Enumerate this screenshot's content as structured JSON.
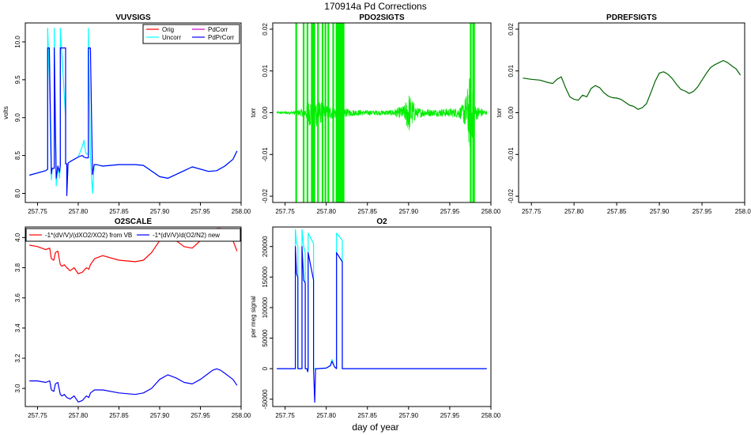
{
  "figure": {
    "title": "170914a   Pd Corrections",
    "xlabel": "day of year"
  },
  "chart_data": [
    {
      "id": "vuvsigs",
      "type": "line",
      "title": "VUVSIGS",
      "ylabel": "volts",
      "xlim": [
        257.735,
        258.0
      ],
      "ylim": [
        7.88,
        10.25
      ],
      "x_ticks": [
        "257.75",
        "257.80",
        "257.85",
        "257.90",
        "257.95",
        "258.00"
      ],
      "y_ticks": [
        "8.0",
        "8.5",
        "9.0",
        "9.5",
        "10.0"
      ],
      "legend": {
        "position": "top-right",
        "columns": 2,
        "entries": [
          "Orig",
          "Uncorr",
          "PdCorr",
          "PdPrCorr"
        ]
      },
      "series": [
        {
          "name": "Uncorr",
          "color": "#00ffff",
          "x": [
            257.74,
            257.76,
            257.7625,
            257.7625,
            257.7645,
            257.767,
            257.768,
            257.7705,
            257.7705,
            257.773,
            257.775,
            257.777,
            257.778,
            257.778,
            257.7845,
            257.7845,
            257.786,
            257.786,
            257.7875,
            257.79,
            257.8,
            257.805,
            257.807,
            257.809,
            257.81,
            257.8125,
            257.8125,
            257.815,
            257.8175,
            257.8195,
            257.8195,
            257.822,
            257.83,
            257.85,
            257.87,
            257.88,
            257.9,
            257.91,
            257.93,
            257.94,
            257.96,
            257.97,
            257.98,
            257.99,
            257.995
          ],
          "y": [
            8.24,
            8.3,
            8.32,
            10.18,
            9.5,
            8.18,
            8.33,
            8.33,
            10.18,
            8.1,
            8.36,
            8.2,
            8.37,
            10.18,
            9.0,
            8.39,
            8.39,
            8.0,
            8.4,
            8.42,
            8.48,
            8.62,
            8.7,
            8.55,
            8.52,
            8.52,
            10.18,
            8.5,
            8.0,
            8.38,
            8.38,
            8.38,
            8.36,
            8.38,
            8.38,
            8.37,
            8.22,
            8.2,
            8.3,
            8.35,
            8.29,
            8.3,
            8.36,
            8.45,
            8.56
          ]
        },
        {
          "name": "PdPrCorr",
          "color": "#0000ff",
          "x": [
            257.74,
            257.76,
            257.7625,
            257.7625,
            257.7645,
            257.767,
            257.768,
            257.7705,
            257.7705,
            257.773,
            257.775,
            257.777,
            257.778,
            257.778,
            257.7845,
            257.7845,
            257.786,
            257.786,
            257.7875,
            257.79,
            257.8,
            257.805,
            257.807,
            257.809,
            257.81,
            257.8125,
            257.8125,
            257.815,
            257.8175,
            257.8195,
            257.8195,
            257.822,
            257.83,
            257.85,
            257.87,
            257.88,
            257.9,
            257.91,
            257.93,
            257.94,
            257.96,
            257.97,
            257.98,
            257.99,
            257.995
          ],
          "y": [
            8.24,
            8.3,
            8.32,
            9.92,
            9.92,
            8.26,
            8.33,
            8.33,
            9.92,
            8.2,
            8.36,
            8.28,
            8.37,
            9.92,
            9.92,
            8.39,
            8.39,
            7.97,
            8.4,
            8.42,
            8.48,
            8.5,
            8.48,
            8.47,
            8.47,
            8.47,
            9.92,
            9.92,
            8.25,
            8.38,
            8.38,
            8.38,
            8.36,
            8.38,
            8.38,
            8.37,
            8.22,
            8.2,
            8.3,
            8.35,
            8.29,
            8.3,
            8.36,
            8.45,
            8.56
          ]
        }
      ]
    },
    {
      "id": "pdo2sigts",
      "type": "line",
      "title": "PDO2SIGTS",
      "ylabel": "torr",
      "xlim": [
        257.735,
        258.0
      ],
      "ylim": [
        -0.0215,
        0.0215
      ],
      "x_ticks": [
        "257.75",
        "257.80",
        "257.85",
        "257.90",
        "257.95",
        "258.00"
      ],
      "y_ticks": [
        "-0.02",
        "-0.01",
        "0.00",
        "0.01",
        "0.02"
      ],
      "series": [
        {
          "name": "",
          "color": "#00ee00",
          "noise_envelope": {
            "x": [
              257.74,
              257.76,
              257.775,
              257.78,
              257.785,
              257.79,
              257.8,
              257.81,
              257.82,
              257.83,
              257.85,
              257.87,
              257.88,
              257.895,
              257.9,
              257.905,
              257.91,
              257.93,
              257.96,
              257.965,
              257.97,
              257.975,
              257.98,
              257.995
            ],
            "amp": [
              0.0003,
              0.0004,
              0.0012,
              0.0035,
              0.0045,
              0.003,
              0.0018,
              0.0015,
              0.0012,
              0.0008,
              0.0006,
              0.0006,
              0.0007,
              0.0018,
              0.005,
              0.003,
              0.0012,
              0.0008,
              0.0012,
              0.0018,
              0.0045,
              0.01,
              0.002,
              0.0004
            ]
          },
          "full_spikes_x": [
            257.7635,
            257.7725,
            257.7772,
            257.7825,
            257.7835,
            257.784,
            257.785,
            257.7855,
            257.79,
            257.7955,
            257.799,
            257.8025,
            257.8085,
            257.8125,
            257.814,
            257.8155,
            257.817,
            257.818,
            257.819,
            257.8205,
            257.821,
            257.9755,
            257.9785,
            257.9795
          ]
        }
      ]
    },
    {
      "id": "pdrefsigts",
      "type": "line",
      "title": "PDREFSIGTS",
      "ylabel": "torr",
      "xlim": [
        257.735,
        258.0
      ],
      "ylim": [
        -0.0215,
        0.0215
      ],
      "x_ticks": [
        "257.75",
        "257.80",
        "257.85",
        "257.90",
        "257.95",
        "258.00"
      ],
      "y_ticks": [
        "-0.02",
        "-0.01",
        "0.00",
        "0.01",
        "0.02"
      ],
      "series": [
        {
          "name": "",
          "color": "#006400",
          "x": [
            257.74,
            257.75,
            257.76,
            257.77,
            257.775,
            257.78,
            257.785,
            257.79,
            257.795,
            257.8,
            257.805,
            257.81,
            257.815,
            257.82,
            257.825,
            257.83,
            257.835,
            257.84,
            257.845,
            257.85,
            257.855,
            257.86,
            257.865,
            257.87,
            257.875,
            257.88,
            257.885,
            257.89,
            257.895,
            257.9,
            257.905,
            257.91,
            257.915,
            257.92,
            257.925,
            257.93,
            257.935,
            257.94,
            257.945,
            257.95,
            257.955,
            257.96,
            257.965,
            257.97,
            257.975,
            257.98,
            257.985,
            257.99,
            257.995
          ],
          "y": [
            0.0083,
            0.008,
            0.0078,
            0.0072,
            0.007,
            0.008,
            0.0086,
            0.006,
            0.0038,
            0.0032,
            0.003,
            0.0042,
            0.0038,
            0.0058,
            0.0065,
            0.006,
            0.0048,
            0.004,
            0.0036,
            0.0035,
            0.0032,
            0.0025,
            0.0018,
            0.0015,
            0.0008,
            0.0012,
            0.0022,
            0.0048,
            0.0075,
            0.0095,
            0.0098,
            0.0092,
            0.0082,
            0.0068,
            0.0056,
            0.0052,
            0.0046,
            0.0051,
            0.0062,
            0.0078,
            0.0094,
            0.0108,
            0.0115,
            0.012,
            0.0125,
            0.012,
            0.0112,
            0.0105,
            0.009
          ]
        }
      ]
    },
    {
      "id": "o2scale",
      "type": "line",
      "title": "O2SCALE",
      "ylabel": "",
      "xlim": [
        257.735,
        258.0
      ],
      "ylim": [
        2.88,
        4.07
      ],
      "x_ticks": [
        "257.75",
        "257.80",
        "257.85",
        "257.90",
        "257.95",
        "258.00"
      ],
      "y_ticks": [
        "3.0",
        "3.2",
        "3.4",
        "3.6",
        "3.8",
        "4.0"
      ],
      "legend": {
        "position": "top",
        "columns": 2,
        "entries": [
          "-1*(dV/V)/(dXO2/XO2) from VB",
          "-1*(dV/V)/d(O2/N2) new"
        ]
      },
      "series": [
        {
          "name": "-1*(dV/V)/(dXO2/XO2) from VB",
          "color": "#ff0000",
          "x": [
            257.74,
            257.75,
            257.76,
            257.765,
            257.767,
            257.77,
            257.772,
            257.775,
            257.778,
            257.78,
            257.783,
            257.786,
            257.79,
            257.795,
            257.8,
            257.805,
            257.81,
            257.813,
            257.815,
            257.82,
            257.83,
            257.85,
            257.87,
            257.88,
            257.89,
            257.9,
            257.91,
            257.92,
            257.93,
            257.94,
            257.95,
            257.96,
            257.965,
            257.97,
            257.975,
            257.98,
            257.99,
            257.995
          ],
          "y": [
            3.95,
            3.94,
            3.92,
            3.93,
            3.86,
            3.85,
            3.9,
            3.91,
            3.82,
            3.81,
            3.82,
            3.8,
            3.78,
            3.8,
            3.76,
            3.77,
            3.8,
            3.79,
            3.82,
            3.86,
            3.88,
            3.85,
            3.84,
            3.85,
            3.9,
            3.98,
            4.0,
            3.98,
            3.94,
            3.93,
            3.98,
            4.02,
            4.05,
            4.06,
            4.06,
            4.04,
            3.98,
            3.91
          ]
        },
        {
          "name": "-1*(dV/V)/d(O2/N2) new",
          "color": "#0000ff",
          "x": [
            257.74,
            257.75,
            257.76,
            257.765,
            257.767,
            257.77,
            257.772,
            257.775,
            257.778,
            257.78,
            257.783,
            257.786,
            257.79,
            257.795,
            257.8,
            257.805,
            257.81,
            257.813,
            257.815,
            257.82,
            257.83,
            257.85,
            257.87,
            257.88,
            257.89,
            257.9,
            257.91,
            257.92,
            257.93,
            257.94,
            257.95,
            257.96,
            257.965,
            257.97,
            257.975,
            257.98,
            257.99,
            257.995
          ],
          "y": [
            3.05,
            3.05,
            3.04,
            3.05,
            2.99,
            2.98,
            3.03,
            3.04,
            2.96,
            2.95,
            2.96,
            2.94,
            2.93,
            2.95,
            2.91,
            2.92,
            2.95,
            2.94,
            2.97,
            2.99,
            2.99,
            2.97,
            2.96,
            2.97,
            3.0,
            3.06,
            3.09,
            3.07,
            3.04,
            3.03,
            3.06,
            3.1,
            3.12,
            3.13,
            3.12,
            3.1,
            3.06,
            3.02
          ]
        }
      ]
    },
    {
      "id": "o2",
      "type": "line",
      "title": "O2",
      "ylabel": "per meg signal",
      "xlim": [
        257.735,
        258.0
      ],
      "ylim": [
        -62000,
        232000
      ],
      "x_ticks": [
        "257.75",
        "257.80",
        "257.85",
        "257.90",
        "257.95",
        "258.00"
      ],
      "y_ticks": [
        "-50000",
        "0",
        "50000",
        "100000",
        "150000",
        "200000"
      ],
      "series": [
        {
          "name": "",
          "color": "#00ffff",
          "x": [
            257.74,
            257.76,
            257.7625,
            257.7625,
            257.764,
            257.7655,
            257.7655,
            257.768,
            257.7705,
            257.7705,
            257.7725,
            257.7745,
            257.7745,
            257.7765,
            257.7775,
            257.778,
            257.778,
            257.7845,
            257.7845,
            257.786,
            257.787,
            257.79,
            257.8,
            257.805,
            257.807,
            257.81,
            257.8125,
            257.8125,
            257.8195,
            257.8195,
            257.83,
            257.85,
            257.9,
            257.95,
            257.995
          ],
          "y": [
            0,
            0,
            0,
            228000,
            205000,
            200000,
            0,
            0,
            0,
            228000,
            200000,
            190000,
            0,
            0,
            -5000,
            0,
            222000,
            205000,
            0,
            0,
            0,
            0,
            1000,
            5000,
            15000,
            3000,
            0,
            222000,
            210000,
            0,
            0,
            0,
            0,
            0,
            0
          ]
        },
        {
          "name": "",
          "color": "#0000ff",
          "x": [
            257.74,
            257.76,
            257.7625,
            257.7625,
            257.764,
            257.7655,
            257.7655,
            257.768,
            257.7705,
            257.7705,
            257.7725,
            257.7745,
            257.7745,
            257.7765,
            257.7775,
            257.778,
            257.778,
            257.7845,
            257.7845,
            257.786,
            257.787,
            257.79,
            257.8,
            257.805,
            257.807,
            257.81,
            257.8125,
            257.8125,
            257.8195,
            257.8195,
            257.83,
            257.85,
            257.9,
            257.95,
            257.995
          ],
          "y": [
            0,
            0,
            0,
            200000,
            155000,
            150000,
            0,
            0,
            0,
            200000,
            145000,
            140000,
            0,
            0,
            -5000,
            0,
            190000,
            145000,
            0,
            -55000,
            0,
            0,
            1000,
            5000,
            12000,
            3000,
            0,
            190000,
            175000,
            0,
            0,
            0,
            0,
            0,
            0
          ]
        }
      ]
    }
  ]
}
